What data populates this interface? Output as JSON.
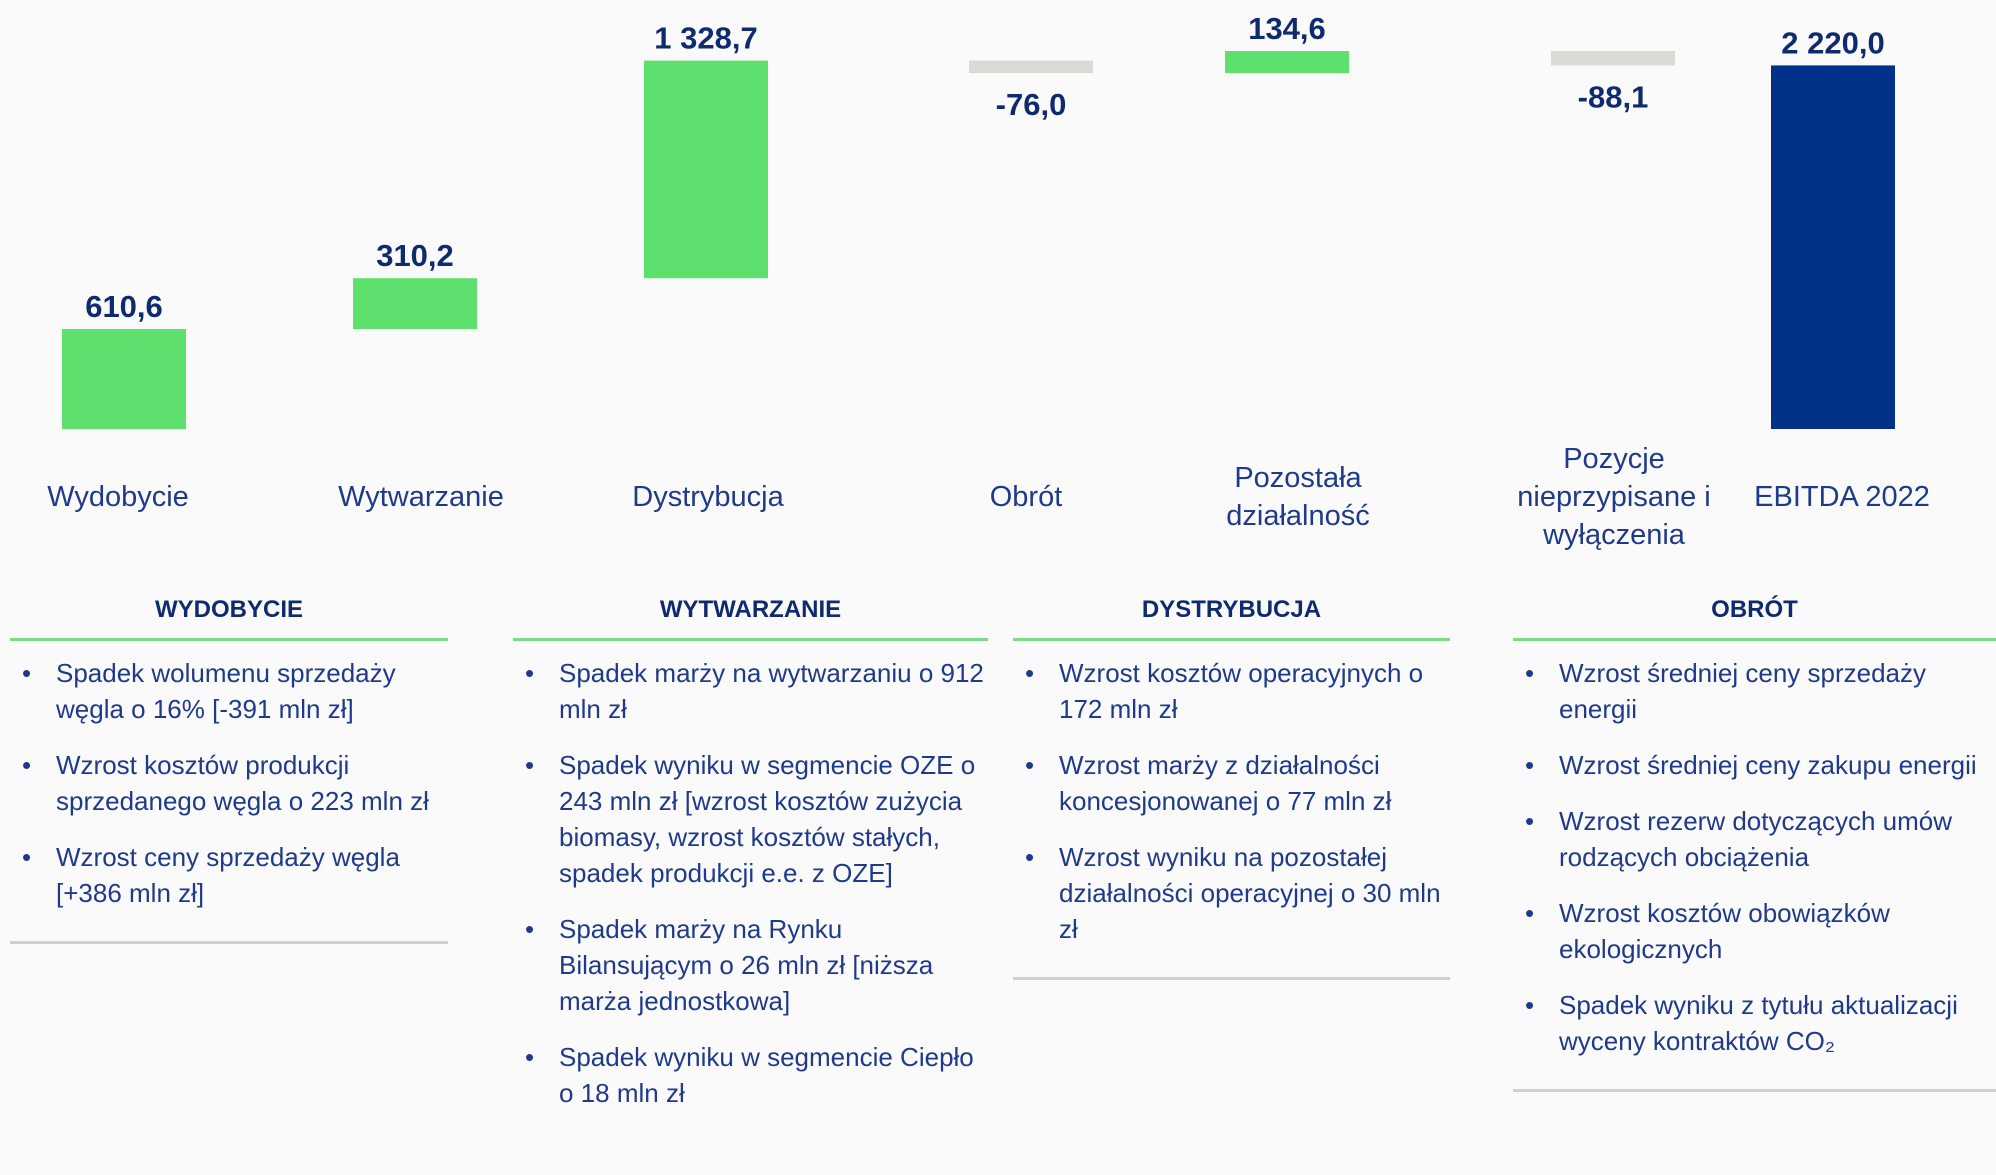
{
  "chart_data": {
    "type": "waterfall",
    "categories": [
      "Wydobycie",
      "Wytwarzanie",
      "Dystrybucja",
      "Obrót",
      "Pozostała działalność",
      "Pozycje nieprzypisane i wyłączenia",
      "EBITDA 2022"
    ],
    "values": [
      610.6,
      310.2,
      1328.7,
      -76.0,
      134.6,
      -88.1,
      2220.0
    ],
    "value_labels": [
      "610,6",
      "310,2",
      "1 328,7",
      "-76,0",
      "134,6",
      "-88,1",
      "2 220,0"
    ],
    "colors": {
      "increase": "#5ee06e",
      "decrease": "#d9d9d5",
      "total": "#003087"
    }
  },
  "notes": [
    {
      "title": "WYDOBYCIE",
      "items": [
        "Spadek wolumenu sprzedaży węgla o 16% [-391 mln zł]",
        "Wzrost kosztów produkcji sprzedanego węgla o 223 mln zł",
        "Wzrost ceny sprzedaży węgla [+386 mln zł]"
      ]
    },
    {
      "title": "WYTWARZANIE",
      "items": [
        "Spadek marży na wytwarzaniu o 912 mln zł",
        "Spadek wyniku w segmencie OZE o 243 mln zł [wzrost kosztów zużycia biomasy, wzrost kosztów stałych, spadek produkcji e.e. z OZE]",
        "Spadek marży na Rynku Bilansującym o 26 mln zł [niższa marża jednostkowa]",
        "Spadek wyniku w segmencie Ciepło o 18 mln zł"
      ]
    },
    {
      "title": "DYSTRYBUCJA",
      "items": [
        "Wzrost kosztów operacyjnych o 172 mln zł",
        "Wzrost marży z działalności koncesjonowanej o 77 mln zł",
        "Wzrost wyniku na pozostałej działalności operacyjnej o 30 mln zł"
      ]
    },
    {
      "title": "OBRÓT",
      "items": [
        "Wzrost średniej ceny sprzedaży energii",
        "Wzrost średniej ceny zakupu energii",
        "Wzrost rezerw dotyczących umów rodzących obciążenia",
        "Wzrost kosztów obowiązków ekologicznych",
        "Spadek wyniku z tytułu aktualizacji wyceny kontraktów CO₂"
      ]
    }
  ]
}
